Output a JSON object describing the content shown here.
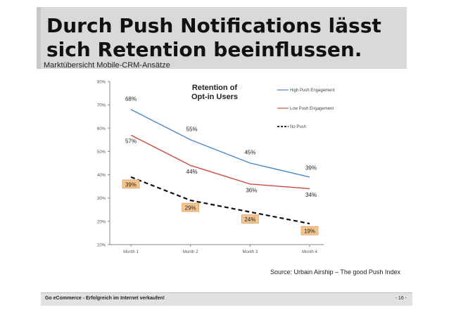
{
  "slide": {
    "title": "Durch Push Notifications lässt sich Retention beeinflussen.",
    "subtitle": "Marktübersicht Mobile-CRM-Ansätze",
    "source": "Source: Urbain Airship – The good Push Index",
    "footer_left": "Go eCommerce - Erfolgreich im Internet verkaufen!",
    "footer_right": "- 16 -"
  },
  "chart_data": {
    "type": "line",
    "title": "Retention of Opt-in Users",
    "categories": [
      "Month 1",
      "Month 2",
      "Month 3",
      "Month 4"
    ],
    "ylim": [
      10,
      80
    ],
    "yticks": [
      "10%",
      "20%",
      "30%",
      "40%",
      "50%",
      "60%",
      "70%",
      "80%"
    ],
    "legend_position": "top-right",
    "series": [
      {
        "name": "High Push Engagement",
        "values": [
          68,
          55,
          45,
          39
        ],
        "labels": [
          "68%",
          "55%",
          "45%",
          "39%"
        ],
        "color": "#4a86c5",
        "style": "solid"
      },
      {
        "name": "Low Push Engagement",
        "values": [
          57,
          44,
          36,
          34
        ],
        "labels": [
          "57%",
          "44%",
          "36%",
          "34%"
        ],
        "color": "#cc4b46",
        "style": "solid"
      },
      {
        "name": "No Push",
        "values": [
          39,
          29,
          24,
          19
        ],
        "labels": [
          "39%",
          "29%",
          "24%",
          "19%"
        ],
        "color": "#111111",
        "style": "dashed"
      }
    ],
    "highlight_color": "#f6c58f"
  }
}
